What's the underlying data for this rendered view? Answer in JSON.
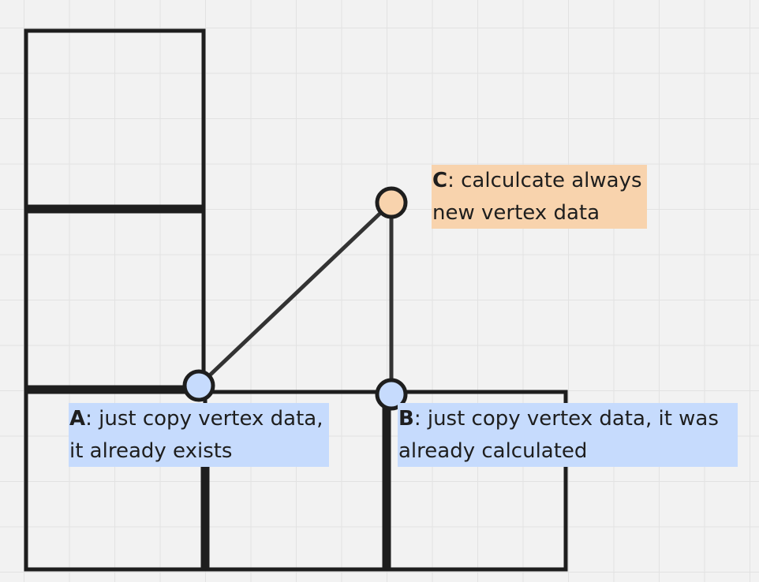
{
  "notes": {
    "c": {
      "key": "C",
      "line1": ": calculcate always",
      "line2": "new vertex data"
    },
    "a": {
      "key": "A",
      "line1": ": just copy vertex data,",
      "line2": "it already exists"
    },
    "b": {
      "key": "B",
      "line1": ": just copy vertex data, it was",
      "line2": "already calculated"
    }
  },
  "colors": {
    "stroke": "#1e1e1e",
    "connector": "#333333",
    "vertex_blue": "#c6dbfd",
    "vertex_orange": "#f8d3ad",
    "note_blue": "#c6dbfd",
    "note_orange": "#f8d3ad",
    "canvas": "#f2f2f2"
  }
}
